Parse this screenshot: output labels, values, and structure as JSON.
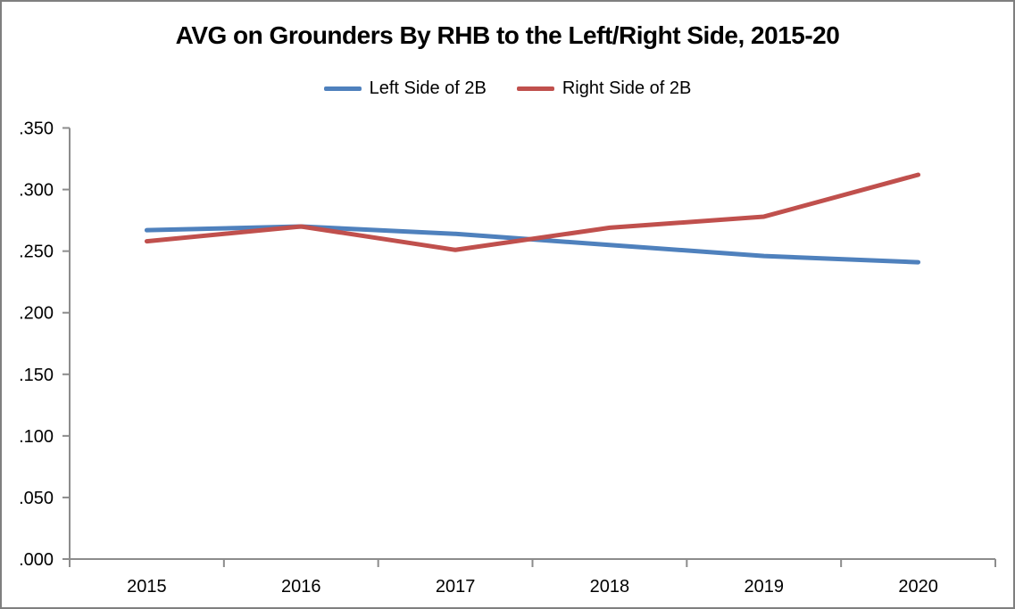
{
  "window": {
    "background": "#FFFFFF",
    "border_color": "#7F7F7F"
  },
  "chart_data": {
    "type": "line",
    "title": "AVG on Grounders By RHB to the Left/Right Side, 2015-20",
    "categories": [
      "2015",
      "2016",
      "2017",
      "2018",
      "2019",
      "2020"
    ],
    "series": [
      {
        "name": "Left Side of 2B",
        "color": "#4F81BD",
        "values": [
          0.267,
          0.27,
          0.264,
          0.255,
          0.246,
          0.241
        ]
      },
      {
        "name": "Right Side of 2B",
        "color": "#C0504D",
        "values": [
          0.258,
          0.27,
          0.251,
          0.269,
          0.278,
          0.312
        ]
      }
    ],
    "y_axis": {
      "min": 0.0,
      "max": 0.35,
      "step": 0.05,
      "tick_labels": [
        ".000",
        ".050",
        ".100",
        ".150",
        ".200",
        ".250",
        ".300",
        ".350"
      ]
    },
    "x_axis": {
      "tick_labels": [
        "2015",
        "2016",
        "2017",
        "2018",
        "2019",
        "2020"
      ]
    },
    "legend_position": "top",
    "grid": false,
    "axis_color": "#8C8C8C",
    "text_color": "#000000"
  }
}
